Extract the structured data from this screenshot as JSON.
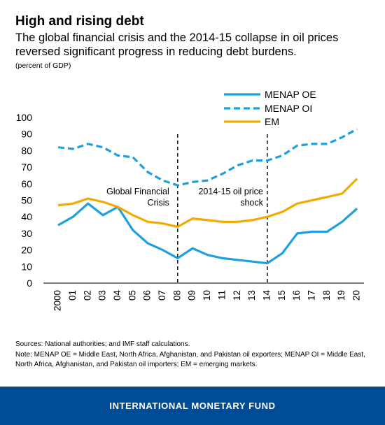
{
  "header": {
    "title": "High and rising debt",
    "subtitle": "The global financial crisis and the 2014-15 collapse in oil prices reversed significant progress in reducing debt burdens.",
    "unit": "(percent of GDP)"
  },
  "footer": {
    "sources": "Sources: National authorities; and IMF staff calculations.",
    "note": "Note: MENAP OE = Middle East, North Africa, Afghanistan, and Pakistan oil exporters; MENAP OI = Middle East, North Africa, Afghanistan, and Pakistan oil importers; EM = emerging markets.",
    "organization": "INTERNATIONAL MONETARY FUND"
  },
  "chart_data": {
    "type": "line",
    "x": [
      "2000",
      "01",
      "02",
      "03",
      "04",
      "05",
      "06",
      "07",
      "08",
      "09",
      "10",
      "11",
      "12",
      "13",
      "14",
      "15",
      "16",
      "17",
      "18",
      "19",
      "20"
    ],
    "ylim": [
      0,
      100
    ],
    "yticks": [
      0,
      10,
      20,
      30,
      40,
      50,
      60,
      70,
      80,
      90,
      100
    ],
    "grid": false,
    "legend_position": "top-right",
    "series": [
      {
        "name": "MENAP OE",
        "color": "#1ea0dc",
        "dash": "solid",
        "values": [
          35,
          40,
          48,
          41,
          46,
          32,
          24,
          20,
          15,
          21,
          17,
          15,
          14,
          13,
          12,
          18,
          30,
          31,
          31,
          37,
          45
        ]
      },
      {
        "name": "MENAP OI",
        "color": "#1ea0dc",
        "dash": "dashed",
        "values": [
          82,
          81,
          84,
          82,
          77,
          76,
          67,
          62,
          59,
          61,
          62,
          66,
          71,
          74,
          74,
          77,
          83,
          84,
          84,
          88,
          93
        ]
      },
      {
        "name": "EM",
        "color": "#f2a900",
        "dash": "solid",
        "values": [
          47,
          48,
          51,
          49,
          46,
          41,
          37,
          36,
          34,
          39,
          38,
          37,
          37,
          38,
          40,
          43,
          48,
          50,
          52,
          54,
          63
        ]
      }
    ],
    "annotations": [
      {
        "at": "08",
        "lines": [
          "Global Financial",
          "Crisis"
        ]
      },
      {
        "at": "14",
        "lines": [
          "2014-15 oil price",
          "shock"
        ]
      }
    ]
  }
}
